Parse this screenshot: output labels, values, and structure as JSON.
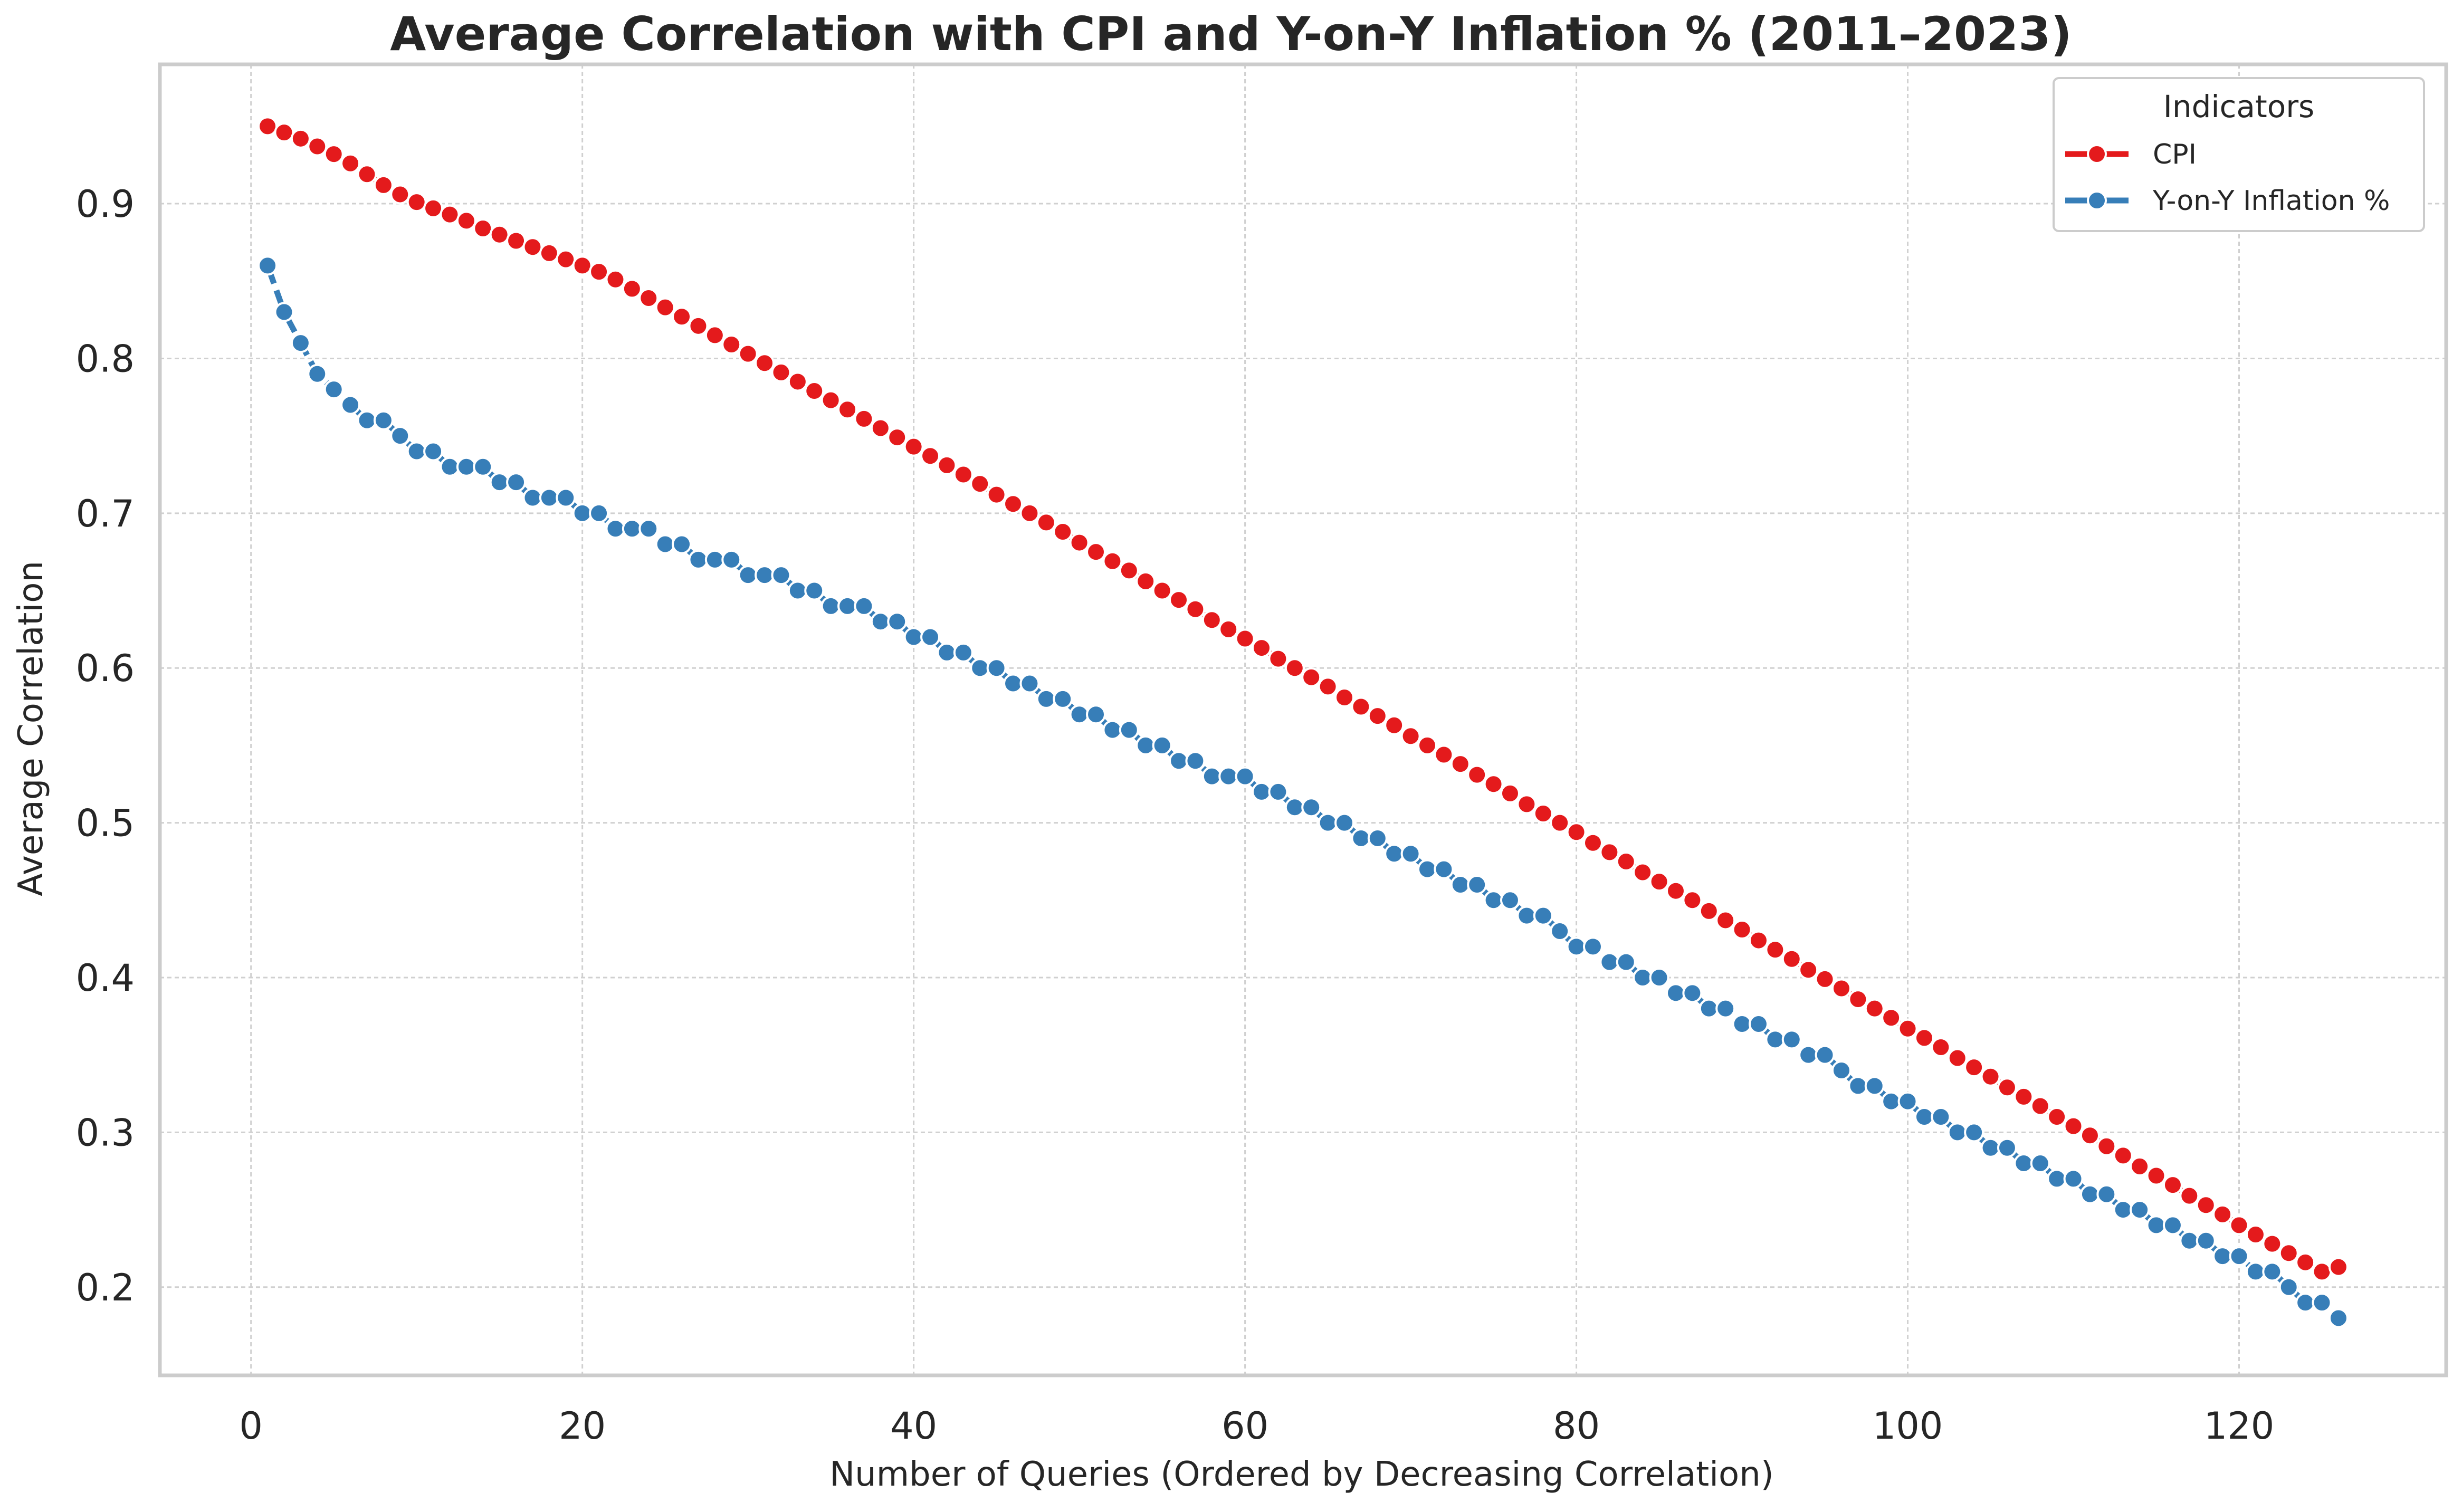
{
  "chart_data": {
    "type": "line",
    "title": "Average Correlation with CPI and Y-on-Y Inflation % (2011–2023)",
    "xlabel": "Number of Queries (Ordered by Decreasing Correlation)",
    "ylabel": "Average Correlation",
    "xlim": [
      -5.5,
      132.5
    ],
    "ylim": [
      0.143,
      0.99
    ],
    "xticks": [
      0,
      20,
      40,
      60,
      80,
      100,
      120
    ],
    "yticks": [
      0.2,
      0.3,
      0.4,
      0.5,
      0.6,
      0.7,
      0.8,
      0.9
    ],
    "grid": true,
    "legend": {
      "title": "Indicators",
      "placement": "top-right"
    },
    "x": [
      1,
      2,
      3,
      4,
      5,
      6,
      7,
      8,
      9,
      10,
      11,
      12,
      13,
      14,
      15,
      16,
      17,
      18,
      19,
      20,
      21,
      22,
      23,
      24,
      25,
      26,
      27,
      28,
      29,
      30,
      31,
      32,
      33,
      34,
      35,
      36,
      37,
      38,
      39,
      40,
      41,
      42,
      43,
      44,
      45,
      46,
      47,
      48,
      49,
      50,
      51,
      52,
      53,
      54,
      55,
      56,
      57,
      58,
      59,
      60,
      61,
      62,
      63,
      64,
      65,
      66,
      67,
      68,
      69,
      70,
      71,
      72,
      73,
      74,
      75,
      76,
      77,
      78,
      79,
      80,
      81,
      82,
      83,
      84,
      85,
      86,
      87,
      88,
      89,
      90,
      91,
      92,
      93,
      94,
      95,
      96,
      97,
      98,
      99,
      100,
      101,
      102,
      103,
      104,
      105,
      106,
      107,
      108,
      109,
      110,
      111,
      112,
      113,
      114,
      115,
      116,
      117,
      118,
      119,
      120,
      121,
      122,
      123,
      124,
      125,
      126
    ],
    "series": [
      {
        "name": "CPI",
        "color": "#e41a1c",
        "values": [
          0.95,
          0.946,
          0.942,
          0.937,
          0.932,
          0.926,
          0.919,
          0.912,
          0.906,
          0.901,
          0.897,
          0.893,
          0.889,
          0.884,
          0.88,
          0.876,
          0.872,
          0.868,
          0.864,
          0.86,
          0.856,
          0.851,
          0.845,
          0.839,
          0.833,
          0.827,
          0.821,
          0.815,
          0.809,
          0.803,
          0.797,
          0.791,
          0.785,
          0.779,
          0.773,
          0.767,
          0.761,
          0.755,
          0.749,
          0.743,
          0.737,
          0.731,
          0.725,
          0.719,
          0.712,
          0.706,
          0.7,
          0.694,
          0.688,
          0.681,
          0.675,
          0.669,
          0.663,
          0.656,
          0.65,
          0.644,
          0.638,
          0.631,
          0.625,
          0.619,
          0.613,
          0.606,
          0.6,
          0.594,
          0.588,
          0.581,
          0.575,
          0.569,
          0.563,
          0.556,
          0.55,
          0.544,
          0.538,
          0.531,
          0.525,
          0.519,
          0.512,
          0.506,
          0.5,
          0.494,
          0.487,
          0.481,
          0.475,
          0.468,
          0.462,
          0.456,
          0.45,
          0.443,
          0.437,
          0.431,
          0.424,
          0.418,
          0.412,
          0.405,
          0.399,
          0.393,
          0.386,
          0.38,
          0.374,
          0.367,
          0.361,
          0.355,
          0.348,
          0.342,
          0.336,
          0.329,
          0.323,
          0.317,
          0.31,
          0.304,
          0.298,
          0.291,
          0.285,
          0.278,
          0.272,
          0.266,
          0.259,
          0.253,
          0.247,
          0.24,
          0.234,
          0.228,
          0.222,
          0.216,
          0.21,
          0.213
        ]
      },
      {
        "name": "Y-on-Y Inflation %",
        "color": "#377eb8",
        "values": [
          0.86,
          0.83,
          0.81,
          0.79,
          0.78,
          0.77,
          0.76,
          0.76,
          0.75,
          0.74,
          0.74,
          0.73,
          0.73,
          0.73,
          0.72,
          0.72,
          0.71,
          0.71,
          0.71,
          0.7,
          0.7,
          0.69,
          0.69,
          0.69,
          0.68,
          0.68,
          0.67,
          0.67,
          0.67,
          0.66,
          0.66,
          0.66,
          0.65,
          0.65,
          0.64,
          0.64,
          0.64,
          0.63,
          0.63,
          0.62,
          0.62,
          0.61,
          0.61,
          0.6,
          0.6,
          0.59,
          0.59,
          0.58,
          0.58,
          0.57,
          0.57,
          0.56,
          0.56,
          0.55,
          0.55,
          0.54,
          0.54,
          0.53,
          0.53,
          0.53,
          0.52,
          0.52,
          0.51,
          0.51,
          0.5,
          0.5,
          0.49,
          0.49,
          0.48,
          0.48,
          0.47,
          0.47,
          0.46,
          0.46,
          0.45,
          0.45,
          0.44,
          0.44,
          0.43,
          0.42,
          0.42,
          0.41,
          0.41,
          0.4,
          0.4,
          0.39,
          0.39,
          0.38,
          0.38,
          0.37,
          0.37,
          0.36,
          0.36,
          0.35,
          0.35,
          0.34,
          0.33,
          0.33,
          0.32,
          0.32,
          0.31,
          0.31,
          0.3,
          0.3,
          0.29,
          0.29,
          0.28,
          0.28,
          0.27,
          0.27,
          0.26,
          0.26,
          0.25,
          0.25,
          0.24,
          0.24,
          0.23,
          0.23,
          0.22,
          0.22,
          0.21,
          0.21,
          0.2,
          0.19,
          0.19,
          0.18
        ]
      }
    ]
  }
}
